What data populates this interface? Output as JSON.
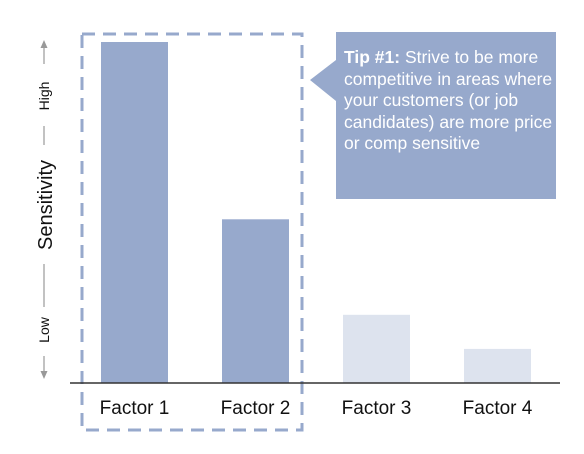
{
  "chart_data": {
    "type": "bar",
    "title": "",
    "xlabel": "",
    "ylabel": "Sensitivity",
    "ylabel_low": "Low",
    "ylabel_high": "High",
    "categories": [
      "Factor 1",
      "Factor 2",
      "Factor 3",
      "Factor 4"
    ],
    "values": [
      100,
      48,
      20,
      10
    ],
    "ylim": [
      0,
      100
    ],
    "highlighted": [
      true,
      true,
      false,
      false
    ],
    "colors": {
      "highlight_bar": "#97a9cc",
      "dim_bar": "#dde3ee",
      "callout": "#97a9cc",
      "frame": "#97a9cc",
      "axis": "#333333",
      "arrow": "#999999"
    },
    "grid": false,
    "legend": "none",
    "annotation": {
      "title": "Tip #1:",
      "text": "Strive to be more competitive in areas where your customers (or job candidates) are more price or comp sensitive"
    }
  }
}
